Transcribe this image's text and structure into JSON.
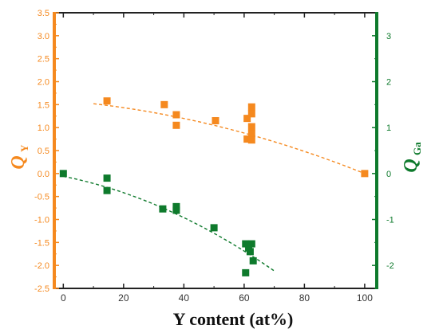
{
  "chart_data": {
    "type": "scatter",
    "xlabel": "Y content (at%)",
    "x_ticks": [
      "0",
      "20",
      "40",
      "60",
      "80",
      "100"
    ],
    "xlim": [
      -3,
      104
    ],
    "y1": {
      "label_main": "Q",
      "label_sub": "Y",
      "ylim": [
        -2.5,
        3.5
      ],
      "ticks": [
        "-2.5",
        "-2.0",
        "-1.5",
        "-1.0",
        "-0.5",
        "0.0",
        "0.5",
        "1.0",
        "1.5",
        "2.0",
        "2.5",
        "3.0",
        "3.5"
      ],
      "color": "#f5891f"
    },
    "y2": {
      "label_main": "Q",
      "label_sub": "Ga",
      "ylim": [
        -2.5,
        3.5
      ],
      "ticks": [
        "-2",
        "-1",
        "0",
        "1",
        "2",
        "3"
      ],
      "color": "#0e7a2c"
    },
    "series": [
      {
        "axis": "y1",
        "color": "#f5891f",
        "points": [
          {
            "x": 14.5,
            "y": 1.58
          },
          {
            "x": 33.5,
            "y": 1.5
          },
          {
            "x": 37.5,
            "y": 1.28
          },
          {
            "x": 37.5,
            "y": 1.05
          },
          {
            "x": 50.5,
            "y": 1.15
          },
          {
            "x": 61.0,
            "y": 1.2
          },
          {
            "x": 61.0,
            "y": 0.75
          },
          {
            "x": 62.5,
            "y": 1.45
          },
          {
            "x": 62.5,
            "y": 1.3
          },
          {
            "x": 62.5,
            "y": 1.02
          },
          {
            "x": 62.5,
            "y": 0.87
          },
          {
            "x": 62.5,
            "y": 0.73
          },
          {
            "x": 100.0,
            "y": 0.0
          }
        ],
        "fit": {
          "x": [
            10,
            100
          ],
          "y": [
            1.52,
            0.0
          ]
        }
      },
      {
        "axis": "y2",
        "color": "#0e7a2c",
        "points": [
          {
            "x": 0.0,
            "y": 0.0
          },
          {
            "x": 14.5,
            "y": -0.1
          },
          {
            "x": 14.5,
            "y": -0.37
          },
          {
            "x": 33.0,
            "y": -0.77
          },
          {
            "x": 37.5,
            "y": -0.72
          },
          {
            "x": 37.5,
            "y": -0.8
          },
          {
            "x": 50.0,
            "y": -1.18
          },
          {
            "x": 60.5,
            "y": -1.53
          },
          {
            "x": 62.5,
            "y": -1.53
          },
          {
            "x": 61.5,
            "y": -1.62
          },
          {
            "x": 62.0,
            "y": -1.7
          },
          {
            "x": 63.0,
            "y": -1.9
          },
          {
            "x": 60.5,
            "y": -2.16
          }
        ],
        "fit": {
          "x": [
            0,
            70
          ],
          "y": [
            -0.06,
            -2.12
          ]
        }
      }
    ]
  }
}
